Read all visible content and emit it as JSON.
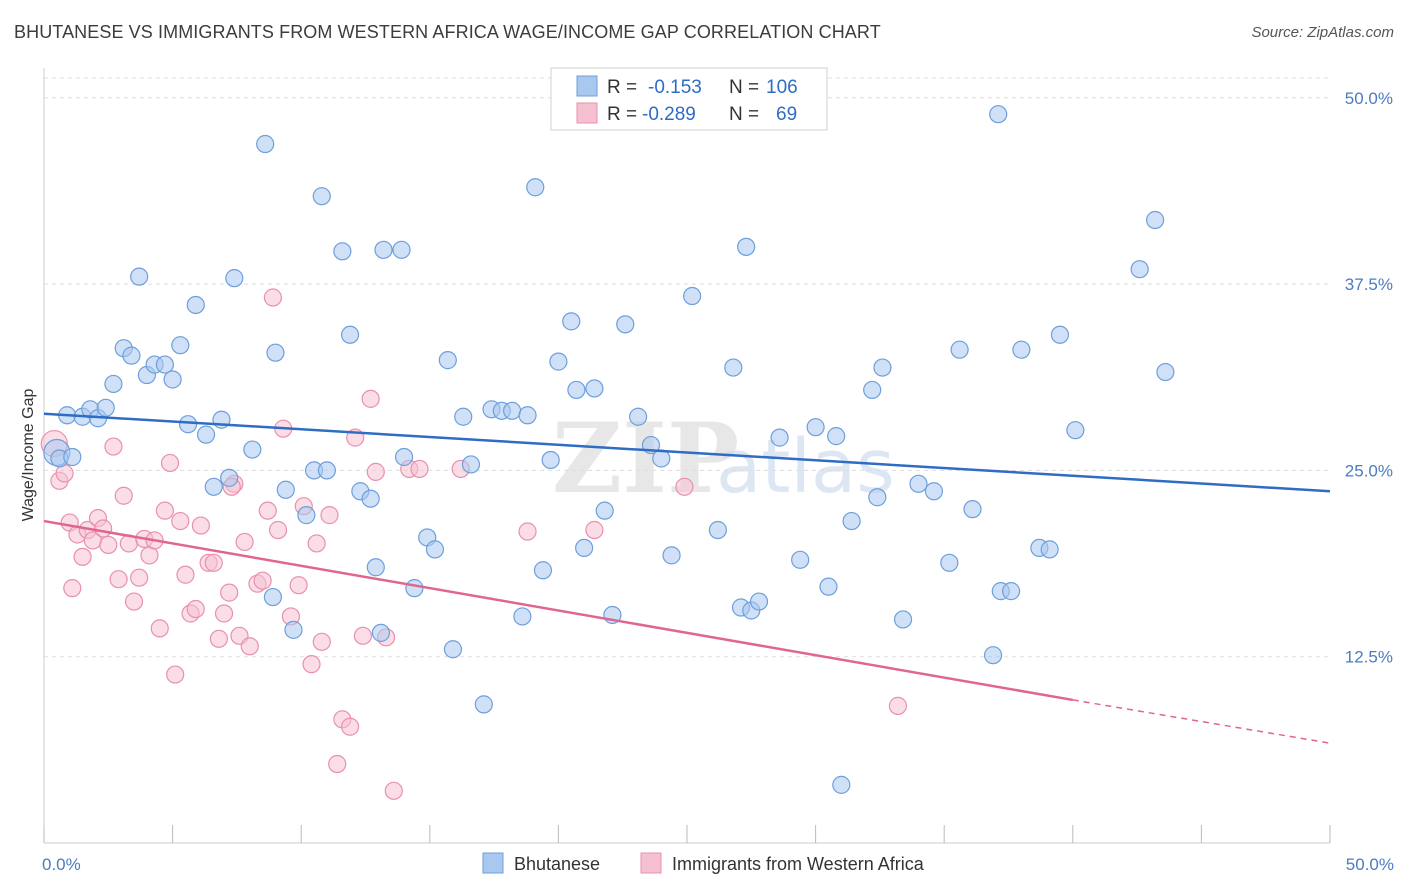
{
  "title": "BHUTANESE VS IMMIGRANTS FROM WESTERN AFRICA WAGE/INCOME GAP CORRELATION CHART",
  "source": "Source: ZipAtlas.com",
  "watermark": {
    "part1": "ZIP",
    "part2": "atlas"
  },
  "colors": {
    "blue_fill": "#a9c8f0",
    "blue_stroke": "#6d9fdb",
    "blue_line": "#2f6cc4",
    "pink_fill": "#f5c1d1",
    "pink_stroke": "#e990ad",
    "pink_line": "#e0658f",
    "grid": "#dddddd",
    "tick_text": "#4a7cc2"
  },
  "legend": {
    "rows": [
      {
        "r_label": "R =",
        "r_value": "-0.153",
        "n_label": "N =",
        "n_value": "106"
      },
      {
        "r_label": "R =",
        "r_value": "-0.289",
        "n_label": "N =",
        "n_value": "69"
      }
    ]
  },
  "bottom_legend": {
    "items": [
      "Bhutanese",
      "Immigrants from Western Africa"
    ]
  },
  "chart_data": {
    "type": "scatter",
    "ylabel": "Wage/Income Gap",
    "xlim": [
      0,
      50
    ],
    "ylim": [
      0,
      52
    ],
    "x_tick_labels": [
      "0.0%",
      "50.0%"
    ],
    "y_ticks": [
      12.5,
      25.0,
      37.5,
      50.0
    ],
    "y_tick_labels": [
      "12.5%",
      "25.0%",
      "37.5%",
      "50.0%"
    ],
    "grid": true,
    "series": [
      {
        "name": "Bhutanese",
        "trend": {
          "x0": 0,
          "y0": 28.8,
          "x1": 50,
          "y1": 23.6
        },
        "points": [
          [
            0.5,
            26.2
          ],
          [
            0.6,
            25.8
          ],
          [
            0.9,
            28.7
          ],
          [
            1.1,
            25.9
          ],
          [
            1.5,
            28.6
          ],
          [
            1.8,
            29.1
          ],
          [
            2.1,
            28.5
          ],
          [
            2.4,
            29.2
          ],
          [
            2.7,
            30.8
          ],
          [
            3.1,
            33.2
          ],
          [
            3.4,
            32.7
          ],
          [
            3.7,
            38.0
          ],
          [
            4.0,
            31.4
          ],
          [
            4.3,
            32.1
          ],
          [
            4.7,
            32.1
          ],
          [
            5.0,
            31.1
          ],
          [
            5.3,
            33.4
          ],
          [
            5.6,
            28.1
          ],
          [
            5.9,
            36.1
          ],
          [
            6.3,
            27.4
          ],
          [
            6.6,
            23.9
          ],
          [
            6.9,
            28.4
          ],
          [
            7.2,
            24.5
          ],
          [
            7.4,
            37.9
          ],
          [
            8.1,
            26.4
          ],
          [
            8.6,
            46.9
          ],
          [
            8.9,
            16.5
          ],
          [
            9.0,
            32.9
          ],
          [
            9.4,
            23.7
          ],
          [
            9.7,
            14.3
          ],
          [
            10.2,
            22.0
          ],
          [
            10.5,
            25.0
          ],
          [
            10.8,
            43.4
          ],
          [
            11.0,
            25.0
          ],
          [
            11.6,
            39.7
          ],
          [
            11.9,
            34.1
          ],
          [
            12.3,
            23.6
          ],
          [
            12.7,
            23.1
          ],
          [
            12.9,
            18.5
          ],
          [
            13.1,
            14.1
          ],
          [
            13.2,
            39.8
          ],
          [
            13.9,
            39.8
          ],
          [
            14.0,
            25.9
          ],
          [
            14.4,
            17.1
          ],
          [
            14.9,
            20.5
          ],
          [
            15.2,
            19.7
          ],
          [
            15.7,
            32.4
          ],
          [
            15.9,
            13.0
          ],
          [
            16.3,
            28.6
          ],
          [
            16.6,
            25.4
          ],
          [
            17.1,
            9.3
          ],
          [
            17.4,
            29.1
          ],
          [
            17.8,
            29.0
          ],
          [
            18.2,
            29.0
          ],
          [
            18.6,
            15.2
          ],
          [
            18.8,
            28.7
          ],
          [
            19.1,
            44.0
          ],
          [
            19.4,
            18.3
          ],
          [
            19.7,
            25.7
          ],
          [
            20.0,
            32.3
          ],
          [
            20.5,
            35.0
          ],
          [
            20.7,
            30.4
          ],
          [
            21.0,
            19.8
          ],
          [
            21.4,
            30.5
          ],
          [
            21.8,
            22.3
          ],
          [
            22.1,
            15.3
          ],
          [
            22.6,
            34.8
          ],
          [
            23.1,
            28.6
          ],
          [
            23.6,
            26.7
          ],
          [
            24.0,
            25.8
          ],
          [
            24.4,
            19.3
          ],
          [
            25.2,
            36.7
          ],
          [
            26.2,
            21.0
          ],
          [
            26.8,
            31.9
          ],
          [
            27.1,
            15.8
          ],
          [
            27.5,
            15.6
          ],
          [
            27.8,
            16.2
          ],
          [
            28.6,
            27.2
          ],
          [
            29.4,
            19.0
          ],
          [
            30.0,
            27.9
          ],
          [
            30.5,
            17.2
          ],
          [
            30.8,
            27.3
          ],
          [
            31.4,
            21.6
          ],
          [
            32.2,
            30.4
          ],
          [
            32.4,
            23.2
          ],
          [
            32.6,
            31.9
          ],
          [
            33.4,
            15.0
          ],
          [
            34.0,
            24.1
          ],
          [
            34.6,
            23.6
          ],
          [
            35.2,
            18.8
          ],
          [
            35.6,
            33.1
          ],
          [
            36.1,
            22.4
          ],
          [
            36.9,
            12.6
          ],
          [
            37.2,
            16.9
          ],
          [
            37.6,
            16.9
          ],
          [
            38.0,
            33.1
          ],
          [
            38.7,
            19.8
          ],
          [
            39.1,
            19.7
          ],
          [
            39.5,
            34.1
          ],
          [
            40.1,
            27.7
          ],
          [
            42.6,
            38.5
          ],
          [
            43.2,
            41.8
          ],
          [
            43.6,
            31.6
          ],
          [
            37.1,
            48.9
          ],
          [
            27.3,
            40.0
          ],
          [
            31.0,
            3.9
          ]
        ]
      },
      {
        "name": "Immigrants from Western Africa",
        "trend": {
          "x0": 0,
          "y0": 21.6,
          "x1": 40,
          "y1": 9.6,
          "dash_to_x": 50,
          "dash_to_y": 6.7
        },
        "points": [
          [
            0.4,
            26.8
          ],
          [
            0.6,
            24.3
          ],
          [
            0.8,
            24.8
          ],
          [
            1.0,
            21.5
          ],
          [
            1.1,
            17.1
          ],
          [
            1.3,
            20.7
          ],
          [
            1.5,
            19.2
          ],
          [
            1.7,
            21.0
          ],
          [
            1.9,
            20.3
          ],
          [
            2.1,
            21.8
          ],
          [
            2.3,
            21.1
          ],
          [
            2.5,
            20.0
          ],
          [
            2.7,
            26.6
          ],
          [
            2.9,
            17.7
          ],
          [
            3.1,
            23.3
          ],
          [
            3.3,
            20.1
          ],
          [
            3.5,
            16.2
          ],
          [
            3.7,
            17.8
          ],
          [
            3.9,
            20.4
          ],
          [
            4.1,
            19.3
          ],
          [
            4.3,
            20.3
          ],
          [
            4.5,
            14.4
          ],
          [
            4.7,
            22.3
          ],
          [
            4.9,
            25.5
          ],
          [
            5.1,
            11.3
          ],
          [
            5.3,
            21.6
          ],
          [
            5.5,
            18.0
          ],
          [
            5.7,
            15.4
          ],
          [
            5.9,
            15.7
          ],
          [
            6.1,
            21.3
          ],
          [
            6.4,
            18.8
          ],
          [
            6.6,
            18.8
          ],
          [
            6.8,
            13.7
          ],
          [
            7.0,
            15.4
          ],
          [
            7.2,
            16.8
          ],
          [
            7.4,
            24.1
          ],
          [
            7.6,
            13.9
          ],
          [
            7.8,
            20.2
          ],
          [
            8.0,
            13.2
          ],
          [
            8.3,
            17.4
          ],
          [
            8.5,
            17.6
          ],
          [
            8.7,
            22.3
          ],
          [
            8.9,
            36.6
          ],
          [
            9.1,
            21.0
          ],
          [
            9.3,
            27.8
          ],
          [
            9.6,
            15.2
          ],
          [
            9.9,
            17.3
          ],
          [
            10.1,
            22.6
          ],
          [
            10.4,
            12.0
          ],
          [
            10.6,
            20.1
          ],
          [
            10.8,
            13.5
          ],
          [
            11.1,
            22.0
          ],
          [
            11.4,
            5.3
          ],
          [
            11.6,
            8.3
          ],
          [
            11.9,
            7.8
          ],
          [
            12.1,
            27.2
          ],
          [
            12.4,
            13.9
          ],
          [
            12.7,
            29.8
          ],
          [
            12.9,
            24.9
          ],
          [
            13.3,
            13.8
          ],
          [
            13.6,
            3.5
          ],
          [
            14.2,
            25.1
          ],
          [
            14.6,
            25.1
          ],
          [
            16.2,
            25.1
          ],
          [
            18.8,
            20.9
          ],
          [
            21.4,
            21.0
          ],
          [
            24.9,
            23.9
          ],
          [
            33.2,
            9.2
          ],
          [
            7.3,
            23.9
          ]
        ]
      }
    ]
  }
}
